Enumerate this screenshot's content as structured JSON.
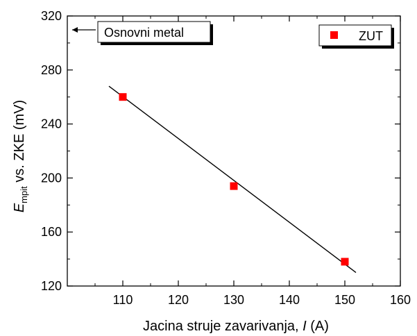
{
  "chart_data": {
    "type": "scatter",
    "xlabel": {
      "prefix": "Jacina struje zavarivanja, ",
      "var": "I",
      "unit": " (A)"
    },
    "ylabel": {
      "var": "E",
      "sub": "mpit",
      "rest": " vs. ZKE (mV)"
    },
    "xlim": [
      100,
      160
    ],
    "ylim": [
      120,
      320
    ],
    "xticks": [
      110,
      120,
      130,
      140,
      150,
      160
    ],
    "yticks": [
      120,
      160,
      200,
      240,
      280,
      320
    ],
    "series": [
      {
        "name": "ZUT",
        "color": "#ff0000",
        "marker": "square",
        "x": [
          110,
          130,
          150
        ],
        "y": [
          260,
          194,
          138
        ]
      }
    ],
    "fit_line": {
      "x": [
        107.5,
        152
      ],
      "y": [
        268,
        130
      ],
      "color": "#000000"
    },
    "annotation": {
      "text": "Osnovni metal",
      "y": 320,
      "arrow": "left"
    },
    "legend_position": "top-right",
    "grid": false
  }
}
